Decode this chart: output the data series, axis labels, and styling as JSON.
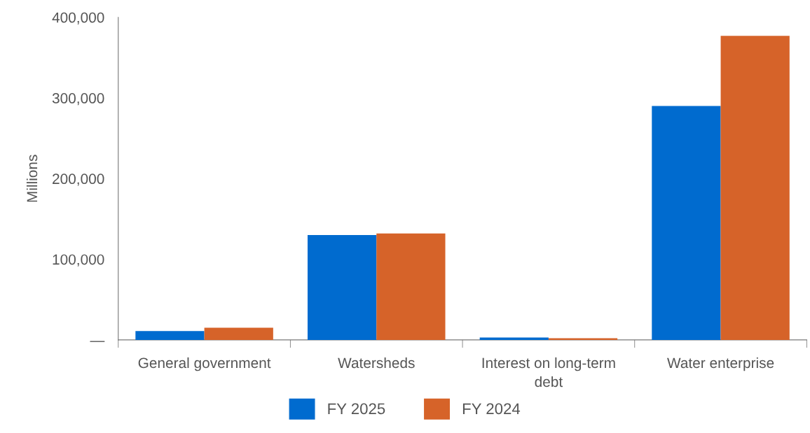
{
  "chart_data": {
    "type": "bar",
    "ylabel": "Millions",
    "categories": [
      "General government",
      "Watersheds",
      "Interest on long-term\ndebt",
      "Water enterprise"
    ],
    "series": [
      {
        "name": "FY 2025",
        "color": "#006bcf",
        "values": [
          11000,
          130000,
          3000,
          290000
        ]
      },
      {
        "name": "FY 2024",
        "color": "#d66329",
        "values": [
          15000,
          132000,
          2000,
          377000
        ]
      }
    ],
    "ylim": [
      0,
      400000
    ],
    "yticks": [
      {
        "value": 0,
        "label": "—"
      },
      {
        "value": 100000,
        "label": "100,000"
      },
      {
        "value": 200000,
        "label": "200,000"
      },
      {
        "value": 300000,
        "label": "300,000"
      },
      {
        "value": 400000,
        "label": "400,000"
      }
    ],
    "grid": false,
    "legend": "bottom"
  }
}
